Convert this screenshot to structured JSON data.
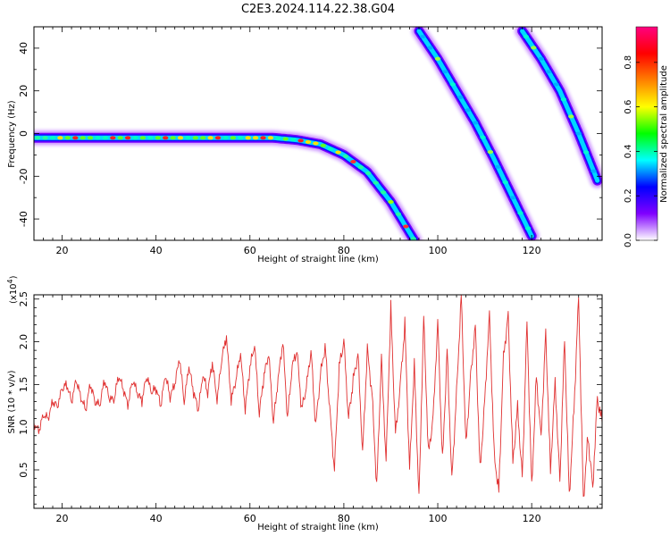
{
  "title": "C2E3.2024.114.22.38.G04",
  "chart_data": [
    {
      "type": "heatmap",
      "xlabel": "Height of straight line (km)",
      "ylabel": "Frequency (Hz)",
      "xlim": [
        14,
        135
      ],
      "ylim": [
        -50,
        50
      ],
      "xticks": [
        20,
        40,
        60,
        80,
        100,
        120
      ],
      "yticks": [
        -40,
        -20,
        0,
        20,
        40
      ],
      "colorbar": {
        "label": "Normalized spectral amplitude",
        "range": [
          0,
          0.96
        ],
        "ticks": [
          0.0,
          0.2,
          0.4,
          0.6,
          0.8
        ],
        "tick_labels": [
          "0.0",
          "0.2",
          "0.4",
          "0.6",
          "0.8"
        ],
        "colors": [
          "#ffffff",
          "#8000ff",
          "#0000ff",
          "#00ffff",
          "#00ff00",
          "#ffff00",
          "#ff8000",
          "#ff0000",
          "#ff0080"
        ]
      },
      "traces": [
        {
          "name": "",
          "x": [
            14,
            20,
            30,
            40,
            50,
            60,
            65,
            70,
            75,
            80,
            85,
            90,
            95
          ],
          "y": [
            -2,
            -2,
            -2,
            -2,
            -2,
            -2,
            -2,
            -3,
            -5,
            -10,
            -18,
            -32,
            -50
          ]
        },
        {
          "name": "",
          "x": [
            96,
            100,
            104,
            108,
            112,
            116,
            120
          ],
          "y": [
            48,
            35,
            20,
            5,
            -12,
            -30,
            -48
          ]
        },
        {
          "name": "",
          "x": [
            118,
            122,
            126,
            130,
            134
          ],
          "y": [
            48,
            35,
            20,
            0,
            -22
          ]
        }
      ]
    },
    {
      "type": "line",
      "xlabel": "Height of straight line (km)",
      "ylabel": "SNR (10 * v/v)",
      "y_multiplier": "(x10",
      "y_multiplier_exp": "4",
      "y_multiplier_close": ")",
      "xlim": [
        14,
        135
      ],
      "ylim": [
        0.05,
        2.55
      ],
      "xticks": [
        20,
        40,
        60,
        80,
        100,
        120
      ],
      "yticks": [
        0.5,
        1.0,
        1.5,
        2.0,
        2.5
      ],
      "ytick_labels": [
        "0.5",
        "1.0",
        "1.5",
        "2.0",
        "2.5"
      ],
      "color": "#e03030",
      "series": [
        {
          "name": "",
          "x": [
            14,
            15,
            16,
            17,
            18,
            19,
            20,
            21,
            22,
            23,
            24,
            25,
            26,
            27,
            28,
            29,
            30,
            31,
            32,
            33,
            34,
            35,
            36,
            37,
            38,
            39,
            40,
            41,
            42,
            43,
            44,
            45,
            46,
            47,
            48,
            49,
            50,
            51,
            52,
            53,
            54,
            55,
            56,
            57,
            58,
            59,
            60,
            61,
            62,
            63,
            64,
            65,
            66,
            67,
            68,
            69,
            70,
            71,
            72,
            73,
            74,
            75,
            76,
            77,
            78,
            79,
            80,
            81,
            82,
            83,
            84,
            85,
            86,
            87,
            88,
            89,
            90,
            91,
            92,
            93,
            94,
            95,
            96,
            97,
            98,
            99,
            100,
            101,
            102,
            103,
            104,
            105,
            106,
            107,
            108,
            109,
            110,
            111,
            112,
            113,
            114,
            115,
            116,
            117,
            118,
            119,
            120,
            121,
            122,
            123,
            124,
            125,
            126,
            127,
            128,
            129,
            130,
            131,
            132,
            133,
            134,
            135
          ],
          "y": [
            1.05,
            0.95,
            1.15,
            1.1,
            1.3,
            1.25,
            1.45,
            1.5,
            1.3,
            1.55,
            1.35,
            1.2,
            1.5,
            1.3,
            1.25,
            1.55,
            1.35,
            1.3,
            1.6,
            1.45,
            1.25,
            1.55,
            1.4,
            1.3,
            1.6,
            1.4,
            1.45,
            1.25,
            1.6,
            1.35,
            1.5,
            1.8,
            1.3,
            1.7,
            1.4,
            1.2,
            1.6,
            1.4,
            1.75,
            1.3,
            1.8,
            2.05,
            1.3,
            1.55,
            1.85,
            1.2,
            1.7,
            1.95,
            1.15,
            1.6,
            1.85,
            1.05,
            1.55,
            2.0,
            1.1,
            1.7,
            1.9,
            1.2,
            1.45,
            1.9,
            1.0,
            1.6,
            1.95,
            1.2,
            0.5,
            1.7,
            2.0,
            1.1,
            1.55,
            1.85,
            0.7,
            1.9,
            1.4,
            0.3,
            1.8,
            0.6,
            2.4,
            0.9,
            1.5,
            2.2,
            0.5,
            1.75,
            0.15,
            2.3,
            0.7,
            1.1,
            2.25,
            0.6,
            1.9,
            0.4,
            1.4,
            2.55,
            0.8,
            1.6,
            2.2,
            0.5,
            1.3,
            2.35,
            0.7,
            0.25,
            1.85,
            2.3,
            0.6,
            1.25,
            0.4,
            2.25,
            0.3,
            1.6,
            0.9,
            2.1,
            0.5,
            1.55,
            0.35,
            2.05,
            0.2,
            1.2,
            2.55,
            0.15,
            0.9,
            0.3,
            1.35,
            1.05
          ]
        }
      ]
    }
  ]
}
